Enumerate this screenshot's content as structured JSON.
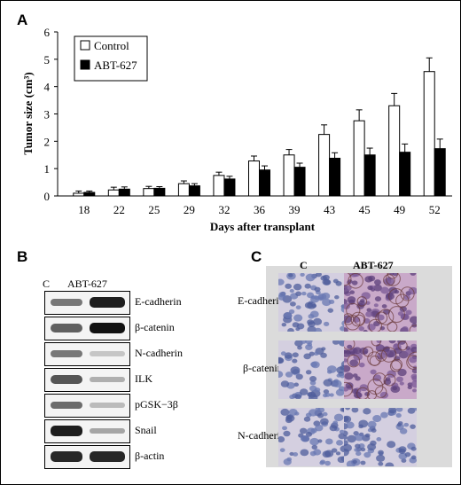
{
  "panels": {
    "a": "A",
    "b": "B",
    "c": "C"
  },
  "chart_data": {
    "type": "bar",
    "categories": [
      "18",
      "22",
      "25",
      "29",
      "32",
      "36",
      "39",
      "43",
      "45",
      "49",
      "52"
    ],
    "series": [
      {
        "name": "Control",
        "values": [
          0.1,
          0.22,
          0.27,
          0.45,
          0.75,
          1.28,
          1.5,
          2.25,
          2.75,
          3.3,
          4.55
        ],
        "errors": [
          0.08,
          0.1,
          0.08,
          0.1,
          0.12,
          0.18,
          0.2,
          0.35,
          0.4,
          0.45,
          0.5
        ],
        "color": "#ffffff"
      },
      {
        "name": "ABT-627",
        "values": [
          0.13,
          0.25,
          0.28,
          0.37,
          0.62,
          0.95,
          1.05,
          1.38,
          1.5,
          1.6,
          1.73
        ],
        "errors": [
          0.05,
          0.08,
          0.06,
          0.08,
          0.1,
          0.15,
          0.15,
          0.2,
          0.25,
          0.3,
          0.35
        ],
        "color": "#000000"
      }
    ],
    "title": "",
    "xlabel": "Days after transplant",
    "ylabel": "Tumor size (cm³)",
    "ylim": [
      0,
      6
    ],
    "yticks": [
      "0",
      "1",
      "2",
      "3",
      "4",
      "5",
      "6"
    ],
    "grid": false,
    "legend": "top-left"
  },
  "western_blot": {
    "columns": [
      "C",
      "ABT-627"
    ],
    "rows": [
      {
        "label": "E-cadherin",
        "intensity": [
          0.55,
          0.95
        ]
      },
      {
        "label": "β-catenin",
        "intensity": [
          0.65,
          1.0
        ]
      },
      {
        "label": "N-cadherin",
        "intensity": [
          0.55,
          0.2
        ]
      },
      {
        "label": "ILK",
        "intensity": [
          0.7,
          0.3
        ]
      },
      {
        "label": "pGSK−3β",
        "intensity": [
          0.6,
          0.25
        ]
      },
      {
        "label": "Snail",
        "intensity": [
          0.95,
          0.35
        ]
      },
      {
        "label": "β-actin",
        "intensity": [
          0.9,
          0.9
        ]
      }
    ]
  },
  "ihc": {
    "columns": [
      "C",
      "ABT-627"
    ],
    "rows": [
      "E-cadherin",
      "β-catenin",
      "N-cadherin"
    ]
  }
}
